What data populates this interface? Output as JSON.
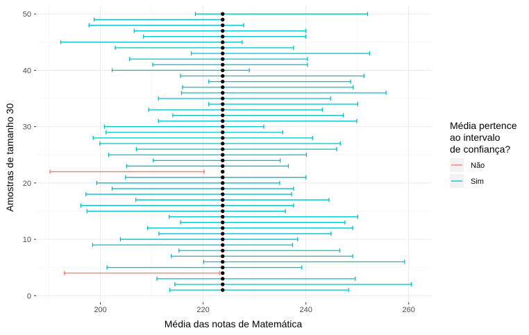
{
  "chart_data": {
    "type": "errorbar",
    "xlabel": "Média das notas de Matemática",
    "ylabel": "Amostras de tamanho 30",
    "xlim": [
      187.5,
      264.5
    ],
    "ylim": [
      -1.2,
      51.5
    ],
    "x_ticks": [
      200,
      220,
      240,
      260
    ],
    "y_ticks": [
      0,
      10,
      20,
      30,
      40,
      50
    ],
    "population_mean": 223.8,
    "legend": {
      "title_lines": [
        "Média pertence",
        "ao intervalo",
        "de confiança?"
      ],
      "placement": "right",
      "entries": [
        {
          "label": "Não",
          "color": "#F8766D"
        },
        {
          "label": "Sim",
          "color": "#00BFC4"
        }
      ]
    },
    "intervals": [
      {
        "sample": 1,
        "low": 213.5,
        "high": 248.3,
        "contains": true
      },
      {
        "sample": 2,
        "low": 214.5,
        "high": 260.5,
        "contains": true
      },
      {
        "sample": 3,
        "low": 211.0,
        "high": 249.6,
        "contains": true
      },
      {
        "sample": 4,
        "low": 193.0,
        "high": 223.2,
        "contains": false
      },
      {
        "sample": 5,
        "low": 201.3,
        "high": 239.2,
        "contains": true
      },
      {
        "sample": 6,
        "low": 220.1,
        "high": 259.2,
        "contains": true
      },
      {
        "sample": 7,
        "low": 213.8,
        "high": 249.1,
        "contains": true
      },
      {
        "sample": 8,
        "low": 215.3,
        "high": 246.6,
        "contains": true
      },
      {
        "sample": 9,
        "low": 198.5,
        "high": 237.4,
        "contains": true
      },
      {
        "sample": 10,
        "low": 203.9,
        "high": 238.4,
        "contains": true
      },
      {
        "sample": 11,
        "low": 211.4,
        "high": 244.9,
        "contains": true
      },
      {
        "sample": 12,
        "low": 209.2,
        "high": 249.1,
        "contains": true
      },
      {
        "sample": 13,
        "low": 215.6,
        "high": 247.6,
        "contains": true
      },
      {
        "sample": 14,
        "low": 213.4,
        "high": 250.1,
        "contains": true
      },
      {
        "sample": 15,
        "low": 197.4,
        "high": 236.0,
        "contains": true
      },
      {
        "sample": 16,
        "low": 196.2,
        "high": 237.6,
        "contains": true
      },
      {
        "sample": 17,
        "low": 206.9,
        "high": 244.5,
        "contains": true
      },
      {
        "sample": 18,
        "low": 197.2,
        "high": 237.2,
        "contains": true
      },
      {
        "sample": 19,
        "low": 202.3,
        "high": 237.6,
        "contains": true
      },
      {
        "sample": 20,
        "low": 199.3,
        "high": 234.9,
        "contains": true
      },
      {
        "sample": 21,
        "low": 204.9,
        "high": 240.0,
        "contains": true
      },
      {
        "sample": 22,
        "low": 190.2,
        "high": 220.2,
        "contains": false
      },
      {
        "sample": 23,
        "low": 205.1,
        "high": 236.6,
        "contains": true
      },
      {
        "sample": 24,
        "low": 210.3,
        "high": 235.0,
        "contains": true
      },
      {
        "sample": 25,
        "low": 201.6,
        "high": 240.1,
        "contains": true
      },
      {
        "sample": 26,
        "low": 207.0,
        "high": 246.0,
        "contains": true
      },
      {
        "sample": 27,
        "low": 199.9,
        "high": 246.7,
        "contains": true
      },
      {
        "sample": 28,
        "low": 198.6,
        "high": 241.3,
        "contains": true
      },
      {
        "sample": 29,
        "low": 201.1,
        "high": 235.5,
        "contains": true
      },
      {
        "sample": 30,
        "low": 200.8,
        "high": 231.8,
        "contains": true
      },
      {
        "sample": 31,
        "low": 211.3,
        "high": 249.9,
        "contains": true
      },
      {
        "sample": 32,
        "low": 214.1,
        "high": 247.3,
        "contains": true
      },
      {
        "sample": 33,
        "low": 209.4,
        "high": 243.2,
        "contains": true
      },
      {
        "sample": 34,
        "low": 221.1,
        "high": 250.1,
        "contains": true
      },
      {
        "sample": 35,
        "low": 211.3,
        "high": 244.8,
        "contains": true
      },
      {
        "sample": 36,
        "low": 215.8,
        "high": 255.6,
        "contains": true
      },
      {
        "sample": 37,
        "low": 216.0,
        "high": 249.2,
        "contains": true
      },
      {
        "sample": 38,
        "low": 221.1,
        "high": 248.7,
        "contains": true
      },
      {
        "sample": 39,
        "low": 215.6,
        "high": 251.3,
        "contains": true
      },
      {
        "sample": 40,
        "low": 202.3,
        "high": 229.0,
        "contains": true
      },
      {
        "sample": 41,
        "low": 210.2,
        "high": 240.3,
        "contains": true
      },
      {
        "sample": 42,
        "low": 205.7,
        "high": 240.3,
        "contains": true
      },
      {
        "sample": 43,
        "low": 217.7,
        "high": 252.4,
        "contains": true
      },
      {
        "sample": 44,
        "low": 202.9,
        "high": 237.6,
        "contains": true
      },
      {
        "sample": 45,
        "low": 192.3,
        "high": 227.6,
        "contains": true
      },
      {
        "sample": 46,
        "low": 208.4,
        "high": 240.0,
        "contains": true
      },
      {
        "sample": 47,
        "low": 206.6,
        "high": 240.0,
        "contains": true
      },
      {
        "sample": 48,
        "low": 197.8,
        "high": 227.9,
        "contains": true
      },
      {
        "sample": 49,
        "low": 198.8,
        "high": 223.8,
        "contains": true
      },
      {
        "sample": 50,
        "low": 218.5,
        "high": 252.0,
        "contains": true
      }
    ]
  }
}
